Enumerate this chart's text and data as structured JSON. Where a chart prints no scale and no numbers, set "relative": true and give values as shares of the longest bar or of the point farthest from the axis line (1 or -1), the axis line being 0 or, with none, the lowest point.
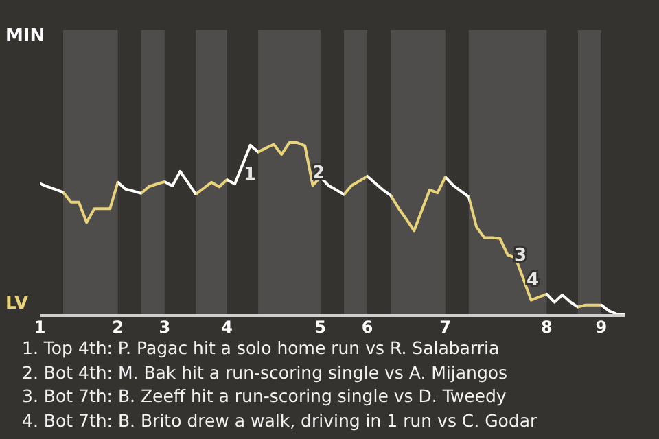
{
  "chart_data": {
    "type": "line",
    "relative": true,
    "categories": [
      "1",
      null,
      null,
      null,
      null,
      null,
      null,
      null,
      null,
      null,
      "2",
      null,
      null,
      null,
      null,
      null,
      "3",
      null,
      null,
      null,
      null,
      null,
      null,
      null,
      "4",
      null,
      null,
      null,
      null,
      null,
      null,
      null,
      null,
      null,
      null,
      null,
      "5",
      null,
      null,
      null,
      null,
      null,
      "6",
      null,
      null,
      null,
      null,
      null,
      null,
      null,
      null,
      null,
      "7",
      null,
      null,
      null,
      null,
      null,
      null,
      null,
      null,
      null,
      null,
      null,
      null,
      "8",
      null,
      null,
      null,
      null,
      null,
      null,
      "9",
      null,
      null,
      null
    ],
    "marker": "none",
    "line_style": "solid",
    "series": [
      {
        "color": "#ffffff",
        "values": [
          0.763,
          0.746,
          0.73,
          0.713,
          0.656,
          0.656,
          0.539,
          0.618,
          0.618,
          0.618,
          0.771,
          0.731,
          0.72,
          0.707,
          0.746,
          0.761,
          0.774,
          0.75,
          0.834,
          0.768,
          0.702,
          0.736,
          0.771,
          0.745,
          0.786,
          0.761,
          0.873,
          0.985,
          0.946,
          0.969,
          0.99,
          0.932,
          1,
          1,
          0.982,
          0.753,
          0.801,
          0.753,
          0.727,
          0.7,
          0.753,
          0.779,
          0.806,
          0.766,
          0.727,
          0.695,
          0.621,
          0.557,
          0.491,
          0.61,
          0.727,
          0.71,
          0.801,
          0.753,
          0.72,
          0.687,
          0.512,
          0.451,
          0.45,
          0.446,
          0.351,
          0.334,
          0.213,
          0.089,
          0.107,
          0.124,
          0.077,
          0.119,
          0.079,
          0.049,
          0.061,
          0.061,
          0.061,
          0.026,
          0.008,
          0.008
        ],
        "colors": [
          "#ffffff",
          "#ffffff",
          "#ffffff",
          "#e8d27a",
          "#e8d27a",
          "#e8d27a",
          "#e8d27a",
          "#e8d27a",
          "#e8d27a",
          "#e8d27a",
          "#ffffff",
          "#ffffff",
          "#ffffff",
          "#e8d27a",
          "#e8d27a",
          "#e8d27a",
          "#ffffff",
          "#ffffff",
          "#ffffff",
          "#ffffff",
          "#e8d27a",
          "#e8d27a",
          "#e8d27a",
          "#e8d27a",
          "#ffffff",
          "#ffffff",
          "#ffffff",
          "#ffffff",
          "#e8d27a",
          "#e8d27a",
          "#e8d27a",
          "#e8d27a",
          "#e8d27a",
          "#e8d27a",
          "#e8d27a",
          "#e8d27a",
          "#ffffff",
          "#ffffff",
          "#ffffff",
          "#e8d27a",
          "#e8d27a",
          "#e8d27a",
          "#ffffff",
          "#ffffff",
          "#ffffff",
          "#e8d27a",
          "#e8d27a",
          "#e8d27a",
          "#e8d27a",
          "#e8d27a",
          "#e8d27a",
          "#e8d27a",
          "#ffffff",
          "#ffffff",
          "#ffffff",
          "#e8d27a",
          "#e8d27a",
          "#e8d27a",
          "#e8d27a",
          "#e8d27a",
          "#e8d27a",
          "#e8d27a",
          "#e8d27a",
          "#e8d27a",
          "#e8d27a",
          "#ffffff",
          "#ffffff",
          "#ffffff",
          "#ffffff",
          "#e8d27a",
          "#e8d27a",
          "#e8d27a",
          "#ffffff",
          "#ffffff",
          "#ffffff",
          "#ffffff"
        ]
      }
    ],
    "annotations": [
      "MIN",
      "LV",
      "1",
      "2",
      "3",
      "4",
      "1. Top 4th: P. Pagac hit a solo home run vs R. Salabarria",
      "2. Bot 4th: M. Bak hit a run-scoring single vs A. Mijangos",
      "3. Bot 7th: B. Zeeff hit a run-scoring single vs D. Tweedy",
      "4. Bot 7th: B. Brito drew a walk, driving in 1 run vs C. Godar"
    ]
  }
}
